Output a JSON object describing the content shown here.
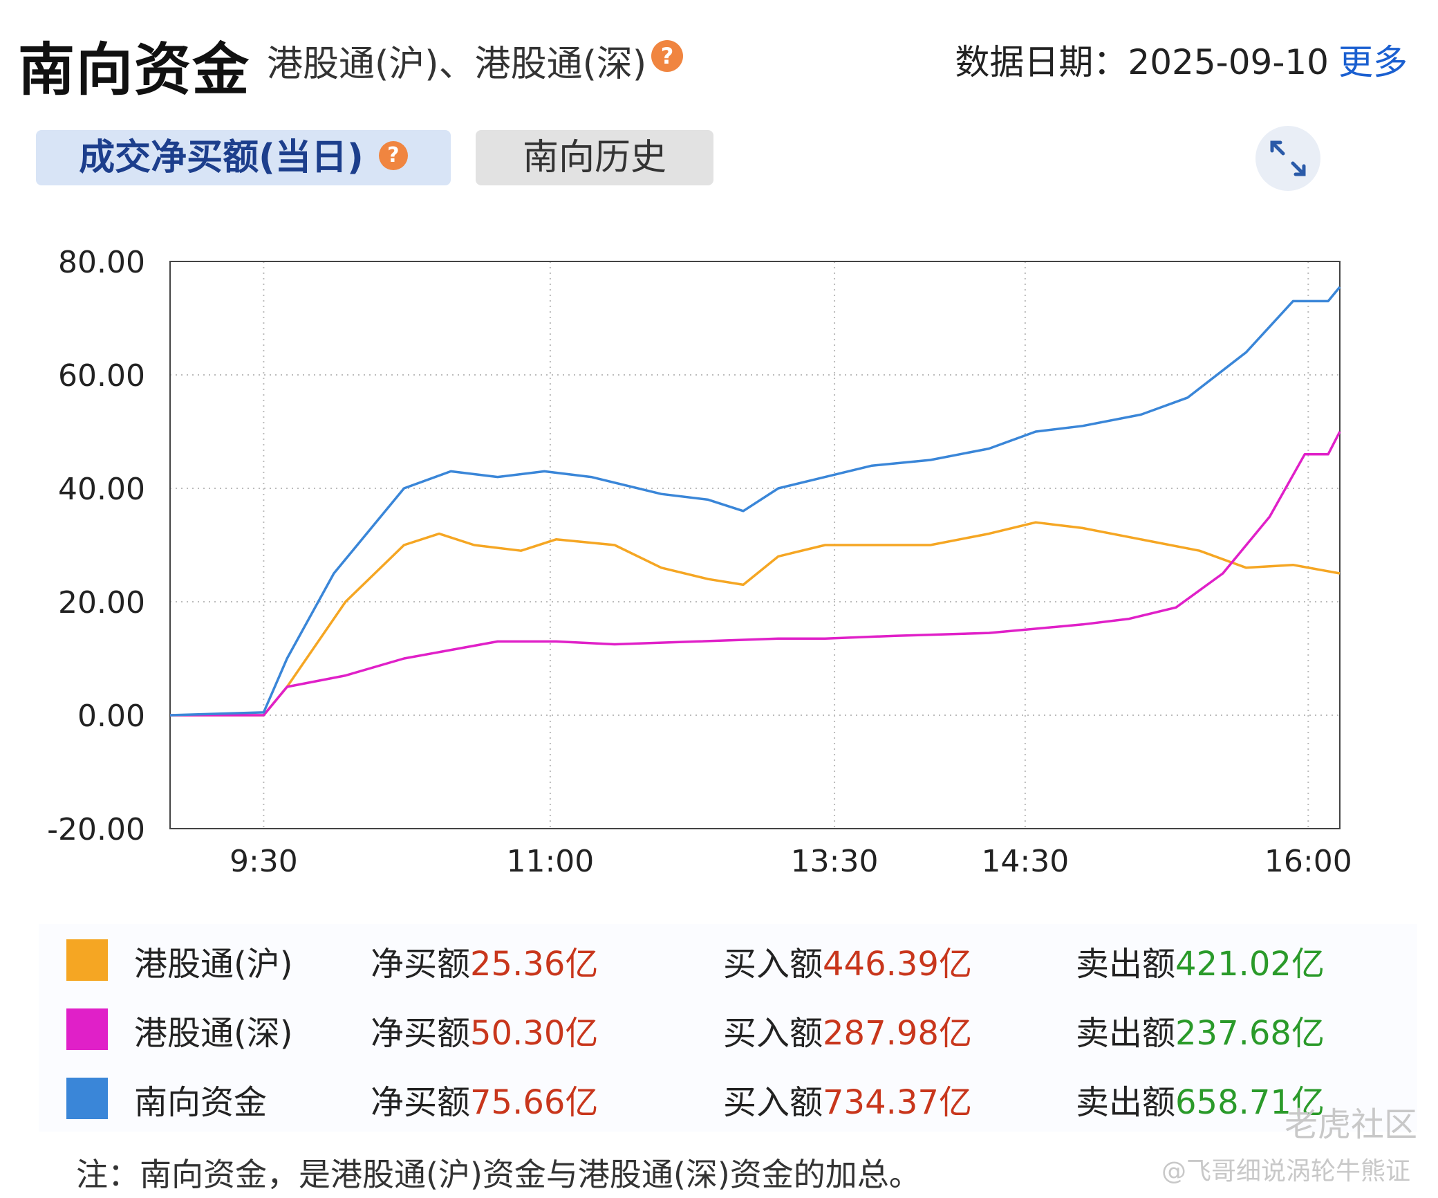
{
  "header": {
    "title": "南向资金",
    "subtitle": "港股通(沪)、港股通(深)",
    "help_symbol": "?",
    "date_label": "数据日期：",
    "date_value": "2025-09-10",
    "more_label": "更多"
  },
  "tabs": {
    "active_label": "成交净买额(当日)",
    "inactive_label": "南向历史"
  },
  "chart_data": {
    "type": "line",
    "title": "",
    "xlabel": "",
    "ylabel": "",
    "ylim": [
      -20,
      80
    ],
    "y_ticks": [
      -20,
      0,
      20,
      40,
      60,
      80
    ],
    "y_tick_labels": [
      "-20.00",
      "0.00",
      "20.00",
      "40.00",
      "60.00",
      "80.00"
    ],
    "x_ticks": [
      {
        "pos": 0.08,
        "label": "9:30"
      },
      {
        "pos": 0.325,
        "label": "11:00"
      },
      {
        "pos": 0.568,
        "label": "13:30"
      },
      {
        "pos": 0.731,
        "label": "14:30"
      },
      {
        "pos": 0.973,
        "label": "16:00"
      }
    ],
    "grid": true,
    "series": [
      {
        "name": "港股通(沪)",
        "color": "#f5a623",
        "points": [
          [
            0,
            0
          ],
          [
            0.08,
            0
          ],
          [
            0.1,
            5
          ],
          [
            0.15,
            20
          ],
          [
            0.2,
            30
          ],
          [
            0.23,
            32
          ],
          [
            0.26,
            30
          ],
          [
            0.3,
            29
          ],
          [
            0.33,
            31
          ],
          [
            0.38,
            30
          ],
          [
            0.42,
            26
          ],
          [
            0.46,
            24
          ],
          [
            0.49,
            23
          ],
          [
            0.52,
            28
          ],
          [
            0.56,
            30
          ],
          [
            0.6,
            30
          ],
          [
            0.65,
            30
          ],
          [
            0.7,
            32
          ],
          [
            0.74,
            34
          ],
          [
            0.78,
            33
          ],
          [
            0.83,
            31
          ],
          [
            0.88,
            29
          ],
          [
            0.92,
            26
          ],
          [
            0.96,
            26.5
          ],
          [
            1,
            25
          ]
        ]
      },
      {
        "name": "港股通(深)",
        "color": "#e020c8",
        "points": [
          [
            0,
            0
          ],
          [
            0.08,
            0
          ],
          [
            0.1,
            5
          ],
          [
            0.15,
            7
          ],
          [
            0.2,
            10
          ],
          [
            0.28,
            13
          ],
          [
            0.33,
            13
          ],
          [
            0.38,
            12.5
          ],
          [
            0.45,
            13
          ],
          [
            0.52,
            13.5
          ],
          [
            0.56,
            13.5
          ],
          [
            0.62,
            14
          ],
          [
            0.7,
            14.5
          ],
          [
            0.78,
            16
          ],
          [
            0.82,
            17
          ],
          [
            0.86,
            19
          ],
          [
            0.9,
            25
          ],
          [
            0.94,
            35
          ],
          [
            0.97,
            46
          ],
          [
            0.99,
            46
          ],
          [
            1,
            50
          ]
        ]
      },
      {
        "name": "南向资金",
        "color": "#3a86d8",
        "points": [
          [
            0,
            0
          ],
          [
            0.08,
            0.5
          ],
          [
            0.1,
            10
          ],
          [
            0.14,
            25
          ],
          [
            0.2,
            40
          ],
          [
            0.24,
            43
          ],
          [
            0.28,
            42
          ],
          [
            0.32,
            43
          ],
          [
            0.36,
            42
          ],
          [
            0.42,
            39
          ],
          [
            0.46,
            38
          ],
          [
            0.49,
            36
          ],
          [
            0.52,
            40
          ],
          [
            0.56,
            42
          ],
          [
            0.6,
            44
          ],
          [
            0.65,
            45
          ],
          [
            0.7,
            47
          ],
          [
            0.74,
            50
          ],
          [
            0.78,
            51
          ],
          [
            0.83,
            53
          ],
          [
            0.87,
            56
          ],
          [
            0.92,
            64
          ],
          [
            0.96,
            73
          ],
          [
            0.99,
            73
          ],
          [
            1,
            75.5
          ]
        ]
      }
    ]
  },
  "legend": [
    {
      "name": "港股通(沪)",
      "color": "#f5a623",
      "net_label": "净买额",
      "net_value": "25.36亿",
      "buy_label": "买入额",
      "buy_value": "446.39亿",
      "sell_label": "卖出额",
      "sell_value": "421.02亿"
    },
    {
      "name": "港股通(深)",
      "color": "#e020c8",
      "net_label": "净买额",
      "net_value": "50.30亿",
      "buy_label": "买入额",
      "buy_value": "287.98亿",
      "sell_label": "卖出额",
      "sell_value": "237.68亿"
    },
    {
      "name": "南向资金",
      "color": "#3a86d8",
      "net_label": "净买额",
      "net_value": "75.66亿",
      "buy_label": "买入额",
      "buy_value": "734.37亿",
      "sell_label": "卖出额",
      "sell_value": "658.71亿"
    }
  ],
  "note": "注：南向资金，是港股通(沪)资金与港股通(深)资金的加总。",
  "watermark": {
    "brand": "老虎社区",
    "author": "@飞哥细说涡轮牛熊证"
  },
  "icons": {
    "help": "question-circle-icon",
    "expand": "expand-arrows-icon"
  }
}
